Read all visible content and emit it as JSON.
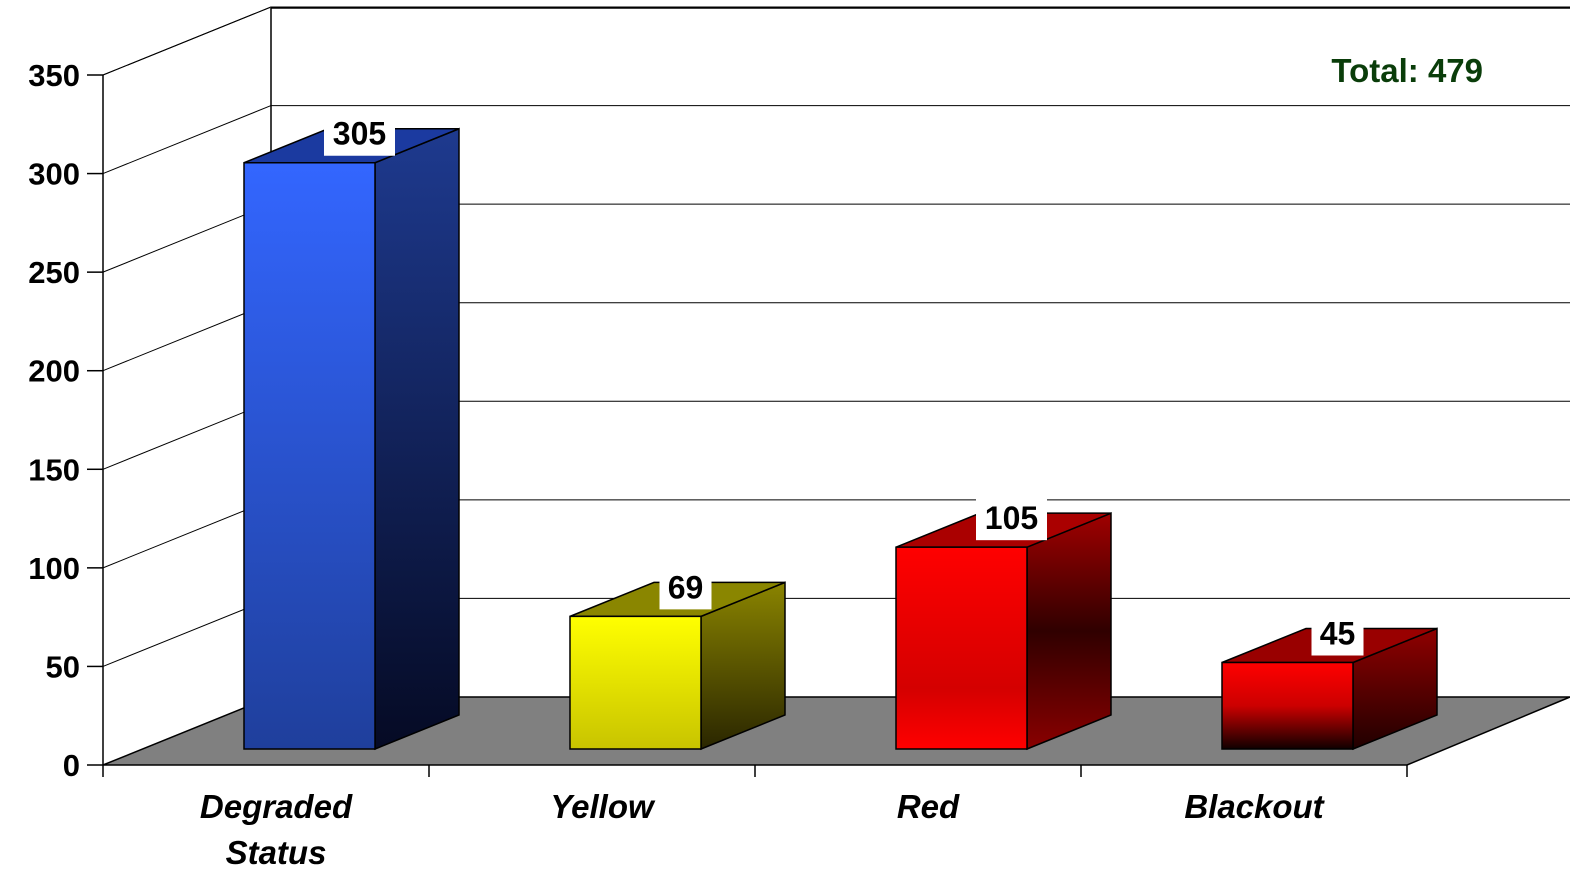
{
  "chart_data": {
    "type": "bar",
    "categories": [
      "Degraded Status",
      "Yellow",
      "Red",
      "Blackout"
    ],
    "category_lines": [
      [
        "Degraded",
        "Status"
      ],
      [
        "Yellow"
      ],
      [
        "Red"
      ],
      [
        "Blackout"
      ]
    ],
    "values": [
      305,
      69,
      105,
      45
    ],
    "data_labels": [
      "305",
      "69",
      "105",
      "45"
    ],
    "colors": [
      "#3366ff",
      "#ffff00",
      "#ff0000",
      "#ff0000"
    ],
    "ylim": [
      0,
      350
    ],
    "yticks": [
      0,
      50,
      100,
      150,
      200,
      250,
      300,
      350
    ],
    "ytick_labels": [
      "0",
      "50",
      "100",
      "150",
      "200",
      "250",
      "300",
      "350"
    ],
    "grid": true,
    "title": "",
    "xlabel": "",
    "ylabel": "",
    "annotation": {
      "text": "Total: 479",
      "color": "#0a3d0a",
      "placement": "top-right"
    },
    "floor_color": "#808080"
  }
}
